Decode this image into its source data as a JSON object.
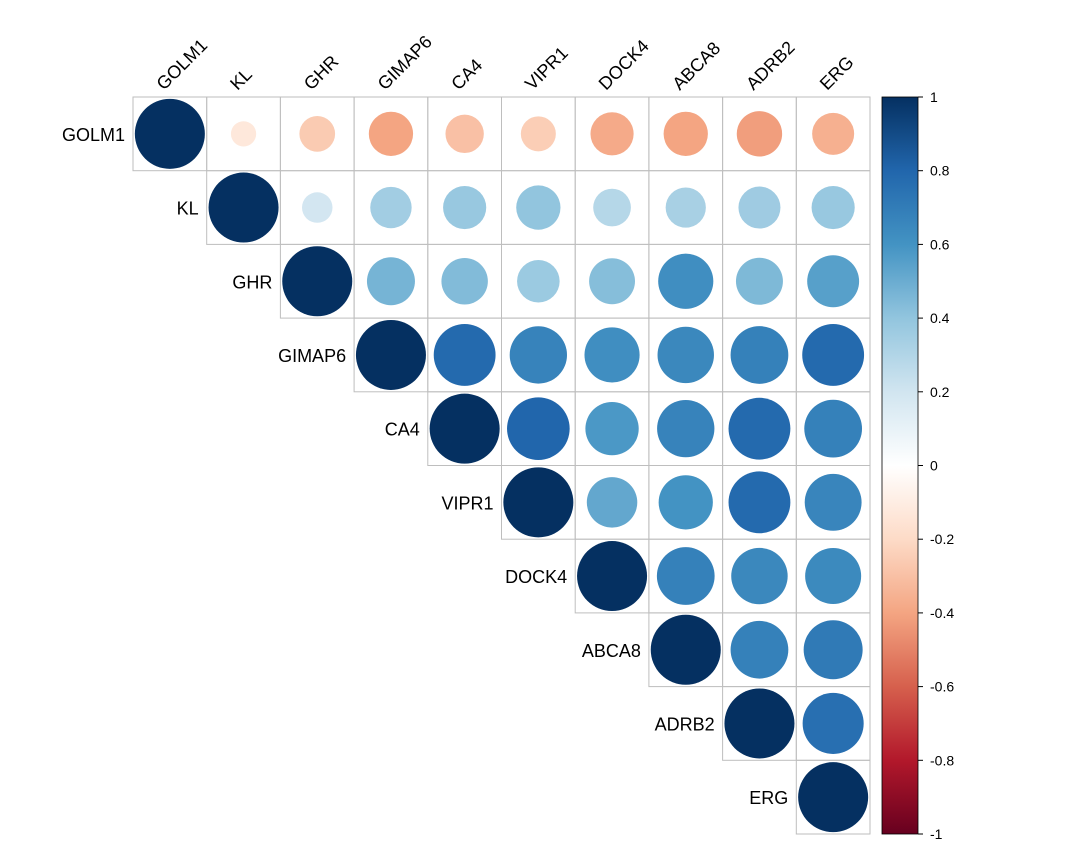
{
  "chart_data": {
    "type": "heatmap",
    "style": "corrplot-circle-upper",
    "variables": [
      "GOLM1",
      "KL",
      "GHR",
      "GIMAP6",
      "CA4",
      "VIPR1",
      "DOCK4",
      "ABCA8",
      "ADRB2",
      "ERG"
    ],
    "matrix": [
      [
        1,
        -0.13,
        -0.26,
        -0.4,
        -0.3,
        -0.25,
        -0.38,
        -0.4,
        -0.42,
        -0.36
      ],
      [
        null,
        1,
        0.19,
        0.35,
        0.38,
        0.4,
        0.29,
        0.33,
        0.36,
        0.38
      ],
      [
        null,
        null,
        1,
        0.47,
        0.44,
        0.37,
        0.43,
        0.62,
        0.45,
        0.55
      ],
      [
        null,
        null,
        null,
        1,
        0.78,
        0.67,
        0.62,
        0.65,
        0.68,
        0.78
      ],
      [
        null,
        null,
        null,
        null,
        1,
        0.8,
        0.58,
        0.67,
        0.78,
        0.68
      ],
      [
        null,
        null,
        null,
        null,
        null,
        1,
        0.52,
        0.6,
        0.78,
        0.66
      ],
      [
        null,
        null,
        null,
        null,
        null,
        null,
        1,
        0.68,
        0.65,
        0.64
      ],
      [
        null,
        null,
        null,
        null,
        null,
        null,
        null,
        1,
        0.68,
        0.71
      ],
      [
        null,
        null,
        null,
        null,
        null,
        null,
        null,
        null,
        1,
        0.76
      ],
      [
        null,
        null,
        null,
        null,
        null,
        null,
        null,
        null,
        null,
        1
      ]
    ],
    "colorbar": {
      "range": [
        -1,
        1
      ],
      "ticks": [
        "1",
        "0.8",
        "0.6",
        "0.4",
        "0.2",
        "0",
        "-0.2",
        "-0.4",
        "-0.6",
        "-0.8",
        "-1"
      ],
      "colors": [
        "#67001F",
        "#B2182B",
        "#D6604D",
        "#F4A582",
        "#FDDBC7",
        "#FFFFFF",
        "#D1E5F0",
        "#92C5DE",
        "#4393C3",
        "#2166AC",
        "#053061"
      ]
    },
    "grid_color": "#BEBEBE"
  }
}
